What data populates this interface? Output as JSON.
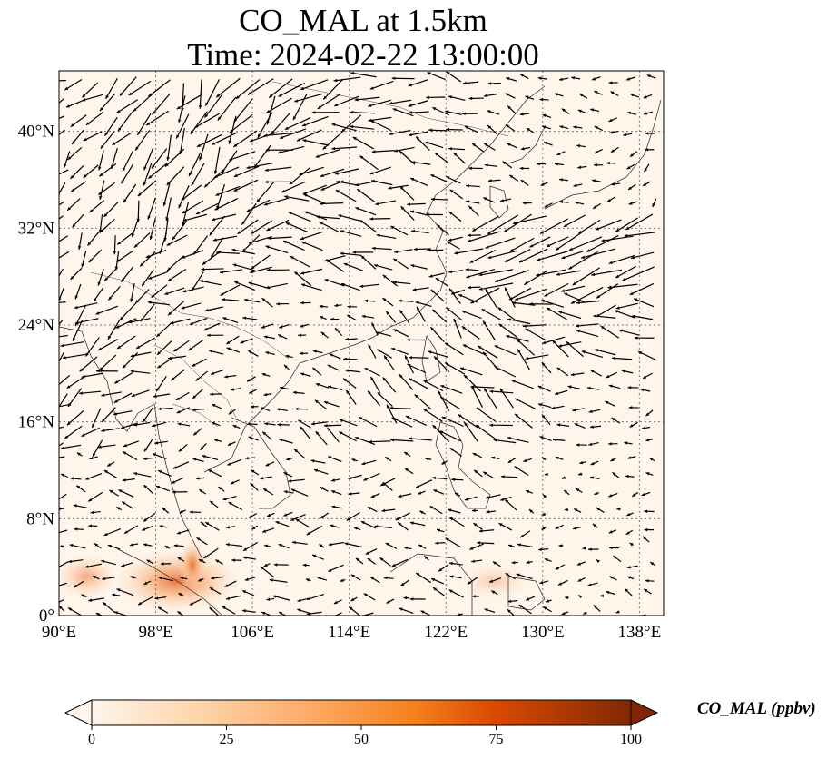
{
  "title": {
    "line1": "CO_MAL at 1.5km",
    "line2": "Time: 2024-02-22 13:00:00"
  },
  "map": {
    "lon_range": [
      90,
      140
    ],
    "lat_range": [
      0,
      45
    ],
    "gridlines": true,
    "x_ticks": [
      "90°E",
      "98°E",
      "106°E",
      "114°E",
      "122°E",
      "130°E",
      "138°E"
    ],
    "y_ticks": [
      "0°",
      "8°N",
      "16°N",
      "24°N",
      "32°N",
      "40°N"
    ],
    "background_color": "#fff5eb",
    "hotspot_color": "#f7b07a",
    "arrow_color": "#000000"
  },
  "colorbar": {
    "label": "CO_MAL (ppbv)",
    "ticks": [
      "0",
      "25",
      "50",
      "75",
      "100"
    ],
    "range": [
      0,
      100
    ],
    "colors": [
      "#fff5eb",
      "#fdd4ab",
      "#fdab67",
      "#f5801d",
      "#d94801",
      "#a63603",
      "#7f2704"
    ]
  }
}
